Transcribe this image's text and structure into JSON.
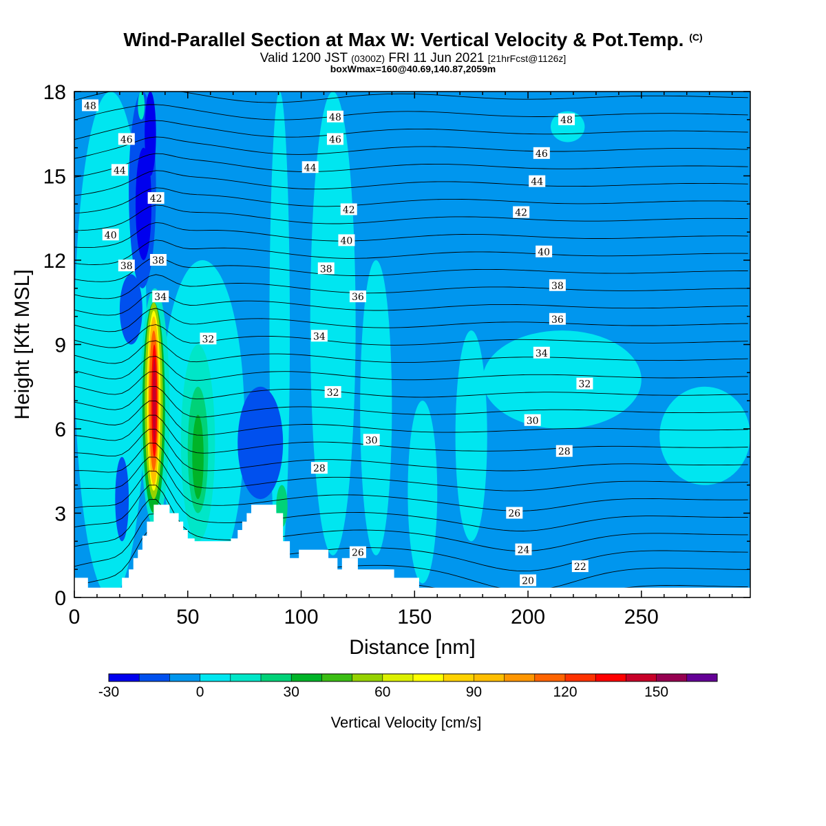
{
  "header": {
    "title": "Wind-Parallel Section at Max W: Vertical Velocity & Pot.Temp.",
    "copyright": "(C)",
    "valid_prefix": "Valid 1200 JST",
    "utc": "(0300Z)",
    "valid_date": "FRI 11 Jun 2021",
    "forecast": "[21hrFcst@1126z]",
    "boxinfo": "boxWmax=160@40.69,140.87,2059m"
  },
  "chart_data": {
    "type": "heatmap",
    "xlabel": "Distance [nm]",
    "ylabel": "Height [Kft MSL]",
    "xlim": [
      0,
      298
    ],
    "ylim": [
      0,
      18
    ],
    "x_ticks": [
      0,
      50,
      100,
      150,
      200,
      250
    ],
    "y_ticks": [
      0,
      3,
      6,
      9,
      12,
      15,
      18
    ],
    "colorbar": {
      "label": "Vertical Velocity [cm/s]",
      "tick_labels": [
        "-30",
        "0",
        "30",
        "60",
        "90",
        "120",
        "150"
      ],
      "bounds": [
        -30,
        170
      ],
      "step": 10,
      "colors": [
        "#0000ee",
        "#0050ee",
        "#0096ee",
        "#00e6f0",
        "#00e6c8",
        "#00d278",
        "#00b428",
        "#3cbe14",
        "#96d200",
        "#dcf000",
        "#ffff00",
        "#ffd200",
        "#ffbe00",
        "#ff9600",
        "#ff6400",
        "#ff3200",
        "#ff0000",
        "#c80028",
        "#960050",
        "#640096"
      ]
    },
    "background_color": "#0096ee",
    "velocity_cells": [
      {
        "x": [
          0,
          300
        ],
        "z": [
          0,
          18
        ],
        "w": -5,
        "color": "#0096ee"
      },
      {
        "x": [
          0,
          32
        ],
        "z": [
          0,
          18
        ],
        "w": 5,
        "color": "#00e6f0"
      },
      {
        "x": [
          38,
          75
        ],
        "z": [
          0.5,
          12
        ],
        "w": 5,
        "color": "#00e6f0"
      },
      {
        "x": [
          86,
          95
        ],
        "z": [
          1,
          18
        ],
        "w": 5,
        "color": "#00e6f0"
      },
      {
        "x": [
          104,
          124
        ],
        "z": [
          1.5,
          18
        ],
        "w": 5,
        "color": "#00e6f0"
      },
      {
        "x": [
          126,
          140
        ],
        "z": [
          1.5,
          12
        ],
        "w": 5,
        "color": "#00e6f0"
      },
      {
        "x": [
          147,
          160
        ],
        "z": [
          0.5,
          7
        ],
        "w": 5,
        "color": "#00e6f0"
      },
      {
        "x": [
          168,
          182
        ],
        "z": [
          2,
          9.5
        ],
        "w": 5,
        "color": "#00e6f0"
      },
      {
        "x": [
          180,
          250
        ],
        "z": [
          6,
          9.5
        ],
        "w": 5,
        "color": "#00e6f0"
      },
      {
        "x": [
          258,
          298
        ],
        "z": [
          4,
          7.5
        ],
        "w": 5,
        "color": "#00e6f0"
      },
      {
        "x": [
          210,
          225
        ],
        "z": [
          16.2,
          17.3
        ],
        "w": 5,
        "color": "#00e6f0"
      },
      {
        "x": [
          18,
          24
        ],
        "z": [
          2,
          5
        ],
        "w": -15,
        "color": "#0050ee"
      },
      {
        "x": [
          20,
          30
        ],
        "z": [
          9,
          11.5
        ],
        "w": -15,
        "color": "#0050ee"
      },
      {
        "x": [
          24,
          36
        ],
        "z": [
          11,
          18
        ],
        "w": -15,
        "color": "#0050ee"
      },
      {
        "x": [
          72,
          92
        ],
        "z": [
          3.5,
          7.5
        ],
        "w": -15,
        "color": "#0050ee"
      },
      {
        "x": [
          27,
          34
        ],
        "z": [
          12,
          16
        ],
        "w": -25,
        "color": "#0000ee"
      },
      {
        "x": [
          31,
          36
        ],
        "z": [
          15,
          18
        ],
        "w": -25,
        "color": "#0000ee"
      },
      {
        "x": [
          47,
          62
        ],
        "z": [
          2,
          9
        ],
        "w": 15,
        "color": "#00e6c8"
      },
      {
        "x": [
          29,
          42
        ],
        "z": [
          2.5,
          11
        ],
        "w": 15,
        "color": "#00e6c8"
      },
      {
        "x": [
          28,
          31
        ],
        "z": [
          17,
          18
        ],
        "w": 15,
        "color": "#00e6c8"
      },
      {
        "x": [
          50,
          59
        ],
        "z": [
          3,
          7.5
        ],
        "w": 25,
        "color": "#00d278"
      },
      {
        "x": [
          52,
          57
        ],
        "z": [
          3.5,
          6.5
        ],
        "w": 35,
        "color": "#00b428"
      },
      {
        "x": [
          89,
          94
        ],
        "z": [
          2.5,
          4
        ],
        "w": 25,
        "color": "#00d278"
      },
      {
        "x": [
          30,
          40
        ],
        "z": [
          3,
          10.5
        ],
        "w": 35,
        "color": "#00b428"
      },
      {
        "x": [
          31,
          39
        ],
        "z": [
          3.5,
          10.5
        ],
        "w": 55,
        "color": "#96d200"
      },
      {
        "x": [
          32,
          38
        ],
        "z": [
          3.8,
          10.2
        ],
        "w": 75,
        "color": "#ffff00"
      },
      {
        "x": [
          32.5,
          37.5
        ],
        "z": [
          4,
          10
        ],
        "w": 95,
        "color": "#ffbe00"
      },
      {
        "x": [
          33,
          37
        ],
        "z": [
          4.5,
          9.5
        ],
        "w": 115,
        "color": "#ff6400"
      },
      {
        "x": [
          34,
          36.5
        ],
        "z": [
          5,
          9
        ],
        "w": 135,
        "color": "#ff0000"
      },
      {
        "x": [
          34.5,
          36
        ],
        "z": [
          5.5,
          8.5
        ],
        "w": 155,
        "color": "#c80028"
      }
    ],
    "terrain_kft": [
      [
        0,
        0.7
      ],
      [
        6,
        0.7
      ],
      [
        6,
        0.35
      ],
      [
        21,
        0.35
      ],
      [
        21,
        0.7
      ],
      [
        24,
        0.7
      ],
      [
        24,
        1
      ],
      [
        26,
        1
      ],
      [
        26,
        1.4
      ],
      [
        28,
        1.4
      ],
      [
        28,
        1.7
      ],
      [
        30,
        1.7
      ],
      [
        30,
        2.2
      ],
      [
        32,
        2.2
      ],
      [
        32,
        2.7
      ],
      [
        35,
        2.7
      ],
      [
        35,
        3.3
      ],
      [
        42,
        3.3
      ],
      [
        42,
        3
      ],
      [
        46,
        3
      ],
      [
        46,
        2.7
      ],
      [
        48,
        2.7
      ],
      [
        48,
        2.4
      ],
      [
        50,
        2.4
      ],
      [
        50,
        2.1
      ],
      [
        53,
        2.1
      ],
      [
        53,
        2
      ],
      [
        69,
        2
      ],
      [
        69,
        2.1
      ],
      [
        72,
        2.1
      ],
      [
        72,
        2.4
      ],
      [
        74,
        2.4
      ],
      [
        74,
        2.7
      ],
      [
        76,
        2.7
      ],
      [
        76,
        3
      ],
      [
        78,
        3
      ],
      [
        78,
        3.3
      ],
      [
        89,
        3.3
      ],
      [
        89,
        3
      ],
      [
        92,
        3
      ],
      [
        92,
        2
      ],
      [
        95,
        2
      ],
      [
        95,
        1.4
      ],
      [
        99,
        1.4
      ],
      [
        99,
        1.7
      ],
      [
        112,
        1.7
      ],
      [
        112,
        1.4
      ],
      [
        116,
        1.4
      ],
      [
        116,
        1
      ],
      [
        118,
        1
      ],
      [
        118,
        1.4
      ],
      [
        125,
        1.4
      ],
      [
        125,
        1
      ],
      [
        141,
        1
      ],
      [
        141,
        0.7
      ],
      [
        152,
        0.7
      ],
      [
        152,
        0.35
      ],
      [
        298,
        0.35
      ],
      [
        298,
        0
      ]
    ],
    "isentropes": {
      "min": 20,
      "max": 48,
      "step": 1,
      "unit": "K (labels)",
      "labels": [
        {
          "text": "48",
          "x": 7,
          "z": 17.5
        },
        {
          "text": "46",
          "x": 23,
          "z": 16.3
        },
        {
          "text": "44",
          "x": 20,
          "z": 15.2
        },
        {
          "text": "42",
          "x": 36,
          "z": 14.2
        },
        {
          "text": "40",
          "x": 16,
          "z": 12.9
        },
        {
          "text": "38",
          "x": 23,
          "z": 11.8
        },
        {
          "text": "38",
          "x": 37,
          "z": 12
        },
        {
          "text": "34",
          "x": 38,
          "z": 10.7
        },
        {
          "text": "32",
          "x": 59,
          "z": 9.2
        },
        {
          "text": "48",
          "x": 115,
          "z": 17.1
        },
        {
          "text": "46",
          "x": 115,
          "z": 16.3
        },
        {
          "text": "44",
          "x": 104,
          "z": 15.3
        },
        {
          "text": "42",
          "x": 121,
          "z": 13.8
        },
        {
          "text": "40",
          "x": 120,
          "z": 12.7
        },
        {
          "text": "38",
          "x": 111,
          "z": 11.7
        },
        {
          "text": "36",
          "x": 125,
          "z": 10.7
        },
        {
          "text": "34",
          "x": 108,
          "z": 9.3
        },
        {
          "text": "32",
          "x": 114,
          "z": 7.3
        },
        {
          "text": "30",
          "x": 131,
          "z": 5.6
        },
        {
          "text": "28",
          "x": 108,
          "z": 4.6
        },
        {
          "text": "26",
          "x": 125,
          "z": 1.6
        },
        {
          "text": "48",
          "x": 217,
          "z": 17
        },
        {
          "text": "46",
          "x": 206,
          "z": 15.8
        },
        {
          "text": "44",
          "x": 204,
          "z": 14.8
        },
        {
          "text": "42",
          "x": 197,
          "z": 13.7
        },
        {
          "text": "40",
          "x": 207,
          "z": 12.3
        },
        {
          "text": "38",
          "x": 213,
          "z": 11.1
        },
        {
          "text": "36",
          "x": 213,
          "z": 9.9
        },
        {
          "text": "34",
          "x": 206,
          "z": 8.7
        },
        {
          "text": "32",
          "x": 225,
          "z": 7.6
        },
        {
          "text": "30",
          "x": 202,
          "z": 6.3
        },
        {
          "text": "28",
          "x": 216,
          "z": 5.2
        },
        {
          "text": "26",
          "x": 194,
          "z": 3
        },
        {
          "text": "24",
          "x": 198,
          "z": 1.7
        },
        {
          "text": "22",
          "x": 223,
          "z": 1.1
        },
        {
          "text": "20",
          "x": 200,
          "z": 0.6
        }
      ]
    }
  }
}
